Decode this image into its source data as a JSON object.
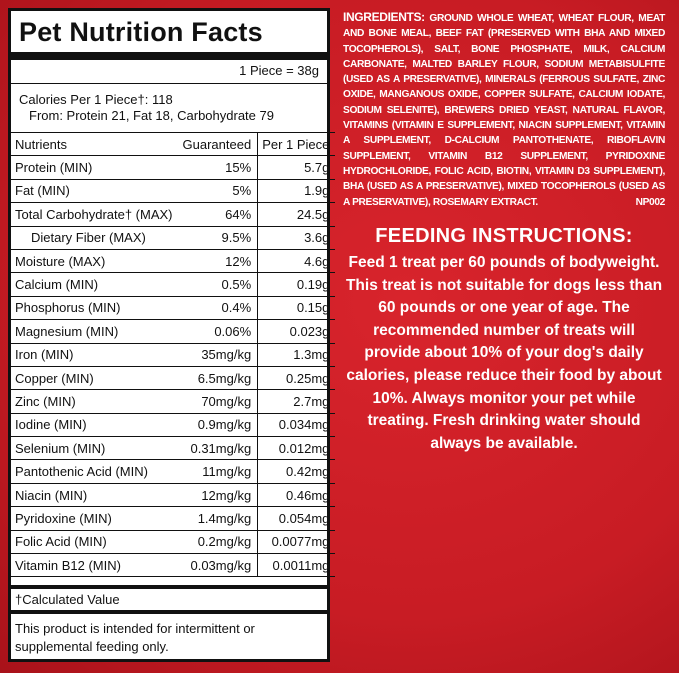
{
  "panel": {
    "title": "Pet Nutrition Facts",
    "serving": "1 Piece = 38g",
    "calories": "Calories Per 1 Piece†: 118",
    "from": "From: Protein 21, Fat 18, Carbohydrate 79"
  },
  "table": {
    "headers": [
      "Nutrients",
      "Guaranteed",
      "Per 1 Piece"
    ],
    "rows": [
      [
        "Protein (MIN)",
        "15%",
        "5.7g"
      ],
      [
        "Fat (MIN)",
        "5%",
        "1.9g"
      ],
      [
        "Total Carbohydrate† (MAX)",
        "64%",
        "24.5g"
      ],
      [
        "Dietary Fiber (MAX)",
        "9.5%",
        "3.6g"
      ],
      [
        "Moisture (MAX)",
        "12%",
        "4.6g"
      ],
      [
        "Calcium (MIN)",
        "0.5%",
        "0.19g"
      ],
      [
        "Phosphorus (MIN)",
        "0.4%",
        "0.15g"
      ],
      [
        "Magnesium (MIN)",
        "0.06%",
        "0.023g"
      ],
      [
        "Iron (MIN)",
        "35mg/kg",
        "1.3mg"
      ],
      [
        "Copper (MIN)",
        "6.5mg/kg",
        "0.25mg"
      ],
      [
        "Zinc (MIN)",
        "70mg/kg",
        "2.7mg"
      ],
      [
        "Iodine (MIN)",
        "0.9mg/kg",
        "0.034mg"
      ],
      [
        "Selenium (MIN)",
        "0.31mg/kg",
        "0.012mg"
      ],
      [
        "Pantothenic Acid (MIN)",
        "11mg/kg",
        "0.42mg"
      ],
      [
        "Niacin (MIN)",
        "12mg/kg",
        "0.46mg"
      ],
      [
        "Pyridoxine (MIN)",
        "1.4mg/kg",
        "0.054mg"
      ],
      [
        "Folic Acid (MIN)",
        "0.2mg/kg",
        "0.0077mg"
      ],
      [
        "Vitamin B12 (MIN)",
        "0.03mg/kg",
        "0.0011mg"
      ]
    ]
  },
  "footnote": "†Calculated Value",
  "note": "This product is intended for intermittent or supplemental feeding only.",
  "ingredients": {
    "label": "INGREDIENTS:",
    "text": "GROUND WHOLE WHEAT, WHEAT FLOUR, MEAT AND BONE MEAL, BEEF FAT (PRESERVED WITH BHA AND MIXED TOCOPHEROLS), SALT, BONE PHOSPHATE, MILK, CALCIUM CARBONATE, MALTED BARLEY FLOUR, SODIUM METABISULFITE (USED AS A PRESERVATIVE), MINERALS (FERROUS SULFATE, ZINC OXIDE, MANGANOUS OXIDE, COPPER SULFATE, CALCIUM IODATE, SODIUM SELENITE), BREWERS DRIED YEAST, NATURAL FLAVOR, VITAMINS (VITAMIN E SUPPLEMENT, NIACIN SUPPLEMENT, VITAMIN A SUPPLEMENT, D-CALCIUM PANTOTHENATE, RIBOFLAVIN SUPPLEMENT, VITAMIN B12 SUPPLEMENT, PYRIDOXINE HYDROCHLORIDE, FOLIC ACID, BIOTIN, VITAMIN D3 SUPPLEMENT), BHA (USED AS A PRESERVATIVE), MIXED TOCOPHEROLS (USED AS A PRESERVATIVE), ROSEMARY EXTRACT.",
    "code": "NP002"
  },
  "feeding": {
    "title": "FEEDING INSTRUCTIONS:",
    "text": "Feed 1 treat per 60 pounds of bodyweight. This treat is not suitable for dogs less than 60 pounds or one year of age. The recommended number of treats will provide about 10% of your dog's daily calories, please reduce their food by about 10%. Always monitor your pet while treating. Fresh drinking water should always be available."
  }
}
